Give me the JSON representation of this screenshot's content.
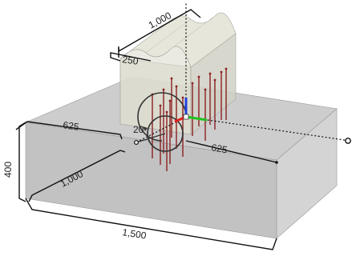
{
  "viewport": {
    "background": "#ffffff",
    "base_color": "#c7c7c7",
    "wall_color": "#dcdcd2",
    "well_color": "#8b2020",
    "axis_colors": {
      "x": "#e02020",
      "y": "#20c020",
      "z": "#2040e0"
    }
  },
  "dimensions": {
    "base_length": "1,500",
    "base_width": "1,000",
    "base_height": "400",
    "base_half_width": "625",
    "base_half_length": "625",
    "wall_length": "1,000",
    "wall_thickness": "250",
    "rotation_angle": "20"
  },
  "icons": {
    "axis_triad": "xyz-triad-icon",
    "rotation_arc": "rotation-arc-icon"
  }
}
